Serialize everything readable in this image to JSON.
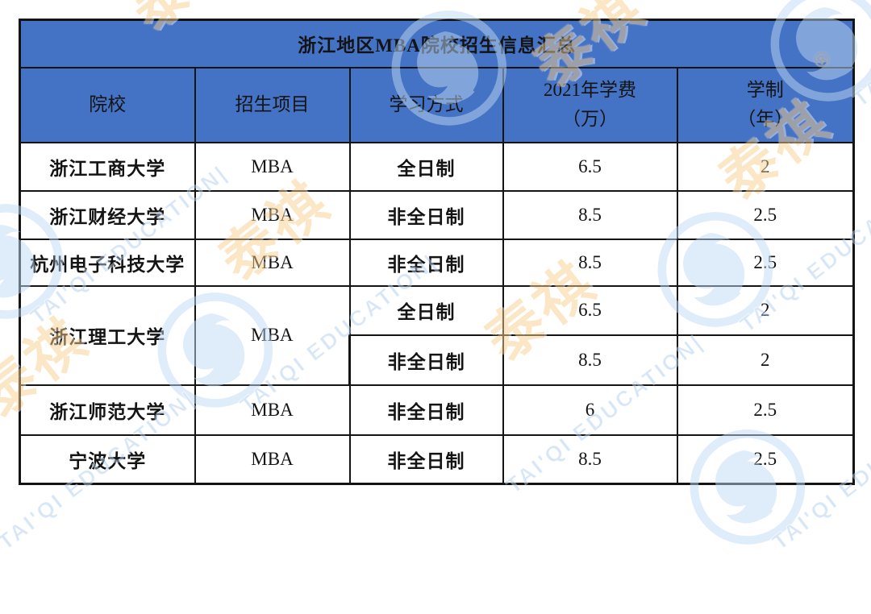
{
  "page": {
    "background": "#ffffff",
    "accent_blue": "#4472C4",
    "border_color": "#141414",
    "text_color": "#141414"
  },
  "table": {
    "title": "浙江地区MBA院校招生信息汇总",
    "columns": [
      {
        "line1": "院校",
        "line2": ""
      },
      {
        "line1": "招生项目",
        "line2": ""
      },
      {
        "line1": "学习方式",
        "line2": ""
      },
      {
        "line1": "2021年学费",
        "line2": "（万）"
      },
      {
        "line1": "学制",
        "line2": "（年）"
      }
    ],
    "rows": [
      {
        "school": "浙江工商大学",
        "program": "MBA",
        "mode": "全日制",
        "fee": "6.5",
        "years": "2"
      },
      {
        "school": "浙江财经大学",
        "program": "MBA",
        "mode": "非全日制",
        "fee": "8.5",
        "years": "2.5"
      },
      {
        "school": "杭州电子科技大学",
        "program": "MBA",
        "mode": "非全日制",
        "fee": "8.5",
        "years": "2.5"
      },
      {
        "school": "浙江理工大学",
        "program": "MBA",
        "mode": "全日制",
        "fee": "6.5",
        "years": "2"
      },
      {
        "mode": "非全日制",
        "fee": "8.5",
        "years": "2"
      },
      {
        "school": "浙江师范大学",
        "program": "MBA",
        "mode": "非全日制",
        "fee": "6",
        "years": "2.5"
      },
      {
        "school": "宁波大学",
        "program": "MBA",
        "mode": "非全日制",
        "fee": "8.5",
        "years": "2.5"
      }
    ]
  },
  "watermark": {
    "cn": "泰祺",
    "en": "TAI'QI EDUCATION|",
    "reg": "®",
    "cn_color": "#F6CE8C",
    "en_color": "#AECDEE",
    "logo_color": "#BFD9F2"
  }
}
